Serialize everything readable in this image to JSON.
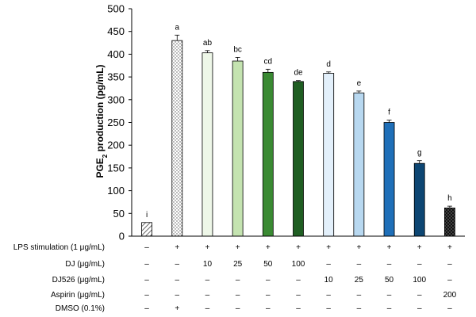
{
  "chart_data": {
    "type": "bar",
    "ylabel": "PGE2 production (pg/mL)",
    "ylabel_main": "PGE",
    "ylabel_sub": "2",
    "ylabel_rest": " production (pg/mL)",
    "ylim": [
      0,
      500
    ],
    "yticks": [
      0,
      50,
      100,
      150,
      200,
      250,
      300,
      350,
      400,
      450,
      500
    ],
    "bars": [
      {
        "value": 30,
        "error": 0,
        "label": "i",
        "color": "#ffffff",
        "pattern": "hatch"
      },
      {
        "value": 430,
        "error": 12,
        "label": "a",
        "color": "#ffffff",
        "pattern": "dots"
      },
      {
        "value": 403,
        "error": 5,
        "label": "ab",
        "color": "#eef7e8",
        "pattern": "none"
      },
      {
        "value": 385,
        "error": 8,
        "label": "bc",
        "color": "#c4e3b0",
        "pattern": "none"
      },
      {
        "value": 360,
        "error": 7,
        "label": "cd",
        "color": "#3a8a33",
        "pattern": "none"
      },
      {
        "value": 340,
        "error": 2,
        "label": "de",
        "color": "#1f5e22",
        "pattern": "none"
      },
      {
        "value": 358,
        "error": 3,
        "label": "d",
        "color": "#e3f0fb",
        "pattern": "none"
      },
      {
        "value": 315,
        "error": 4,
        "label": "e",
        "color": "#b8d8f0",
        "pattern": "none"
      },
      {
        "value": 250,
        "error": 5,
        "label": "f",
        "color": "#1f6fb8",
        "pattern": "none"
      },
      {
        "value": 160,
        "error": 6,
        "label": "g",
        "color": "#0d4673",
        "pattern": "none"
      },
      {
        "value": 62,
        "error": 4,
        "label": "h",
        "color": "#111111",
        "pattern": "dots-light"
      }
    ],
    "table": [
      {
        "label": "LPS stimulation (1 μg/mL)",
        "cells": [
          "–",
          "+",
          "+",
          "+",
          "+",
          "+",
          "+",
          "+",
          "+",
          "+",
          "+"
        ]
      },
      {
        "label": "DJ (μg/mL)",
        "cells": [
          "–",
          "–",
          "10",
          "25",
          "50",
          "100",
          "–",
          "–",
          "–",
          "–",
          "–"
        ]
      },
      {
        "label": "DJ526 (μg/mL)",
        "cells": [
          "–",
          "–",
          "–",
          "–",
          "–",
          "–",
          "10",
          "25",
          "50",
          "100",
          "–"
        ]
      },
      {
        "label": "Aspirin (μg/mL)",
        "cells": [
          "–",
          "–",
          "–",
          "–",
          "–",
          "–",
          "–",
          "–",
          "–",
          "–",
          "200"
        ]
      },
      {
        "label": "DMSO (0.1%)",
        "cells": [
          "–",
          "+",
          "–",
          "–",
          "–",
          "–",
          "–",
          "–",
          "–",
          "–",
          "–"
        ]
      }
    ]
  }
}
